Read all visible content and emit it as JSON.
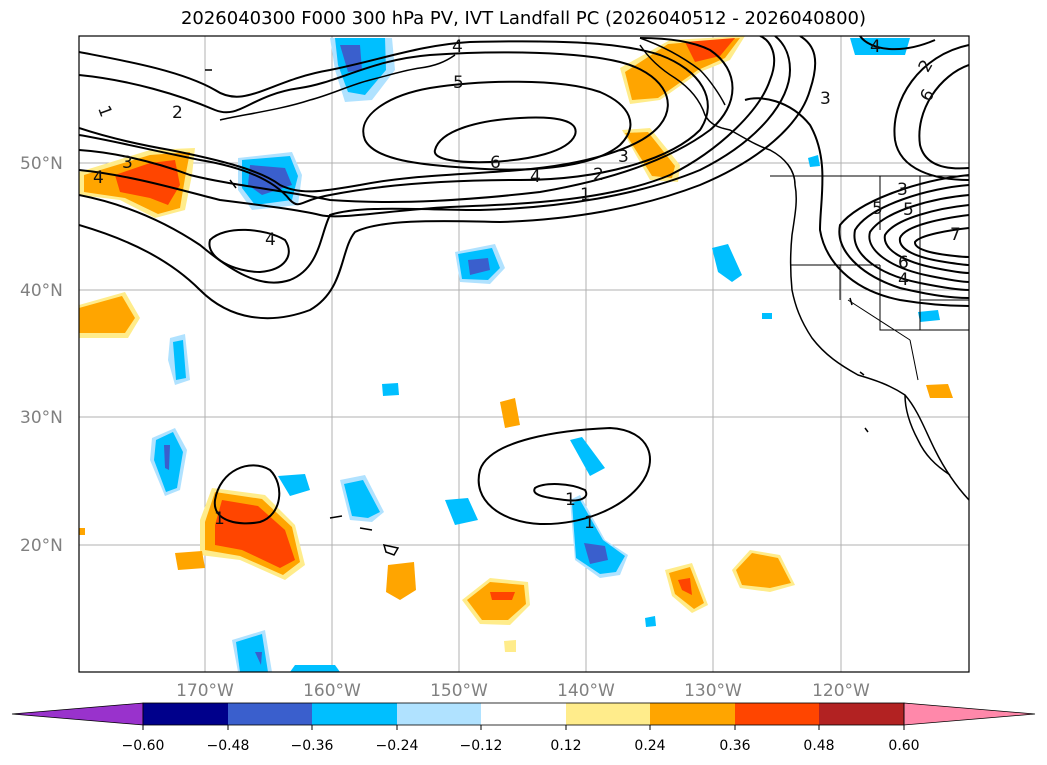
{
  "title": "2026040300 F000 300 hPa PV, IVT Landfall PC (2026040512 - 2026040800)",
  "map": {
    "lat_labels": [
      "50°N",
      "40°N",
      "30°N",
      "20°N"
    ],
    "lon_labels": [
      "170°W",
      "160°W",
      "150°W",
      "140°W",
      "130°W",
      "120°W"
    ],
    "contour_labels": [
      "1",
      "2",
      "3",
      "4",
      "5",
      "6",
      "1",
      "2",
      "3",
      "4",
      "3",
      "4",
      "4",
      "5",
      "6",
      "4",
      "1",
      "1",
      "1",
      "2",
      "3",
      "5",
      "6",
      "4",
      "7"
    ]
  },
  "colorbar": {
    "ticks": [
      "−0.60",
      "−0.48",
      "−0.36",
      "−0.24",
      "−0.12",
      "0.12",
      "0.24",
      "0.36",
      "0.48",
      "0.60"
    ],
    "colors": [
      "#9932cc",
      "#00008b",
      "#3a5fcd",
      "#00bfff",
      "#b0e2ff",
      "#ffffff",
      "#ffec8b",
      "#ffa500",
      "#ff4500",
      "#b22222",
      "#ff88aa"
    ]
  }
}
